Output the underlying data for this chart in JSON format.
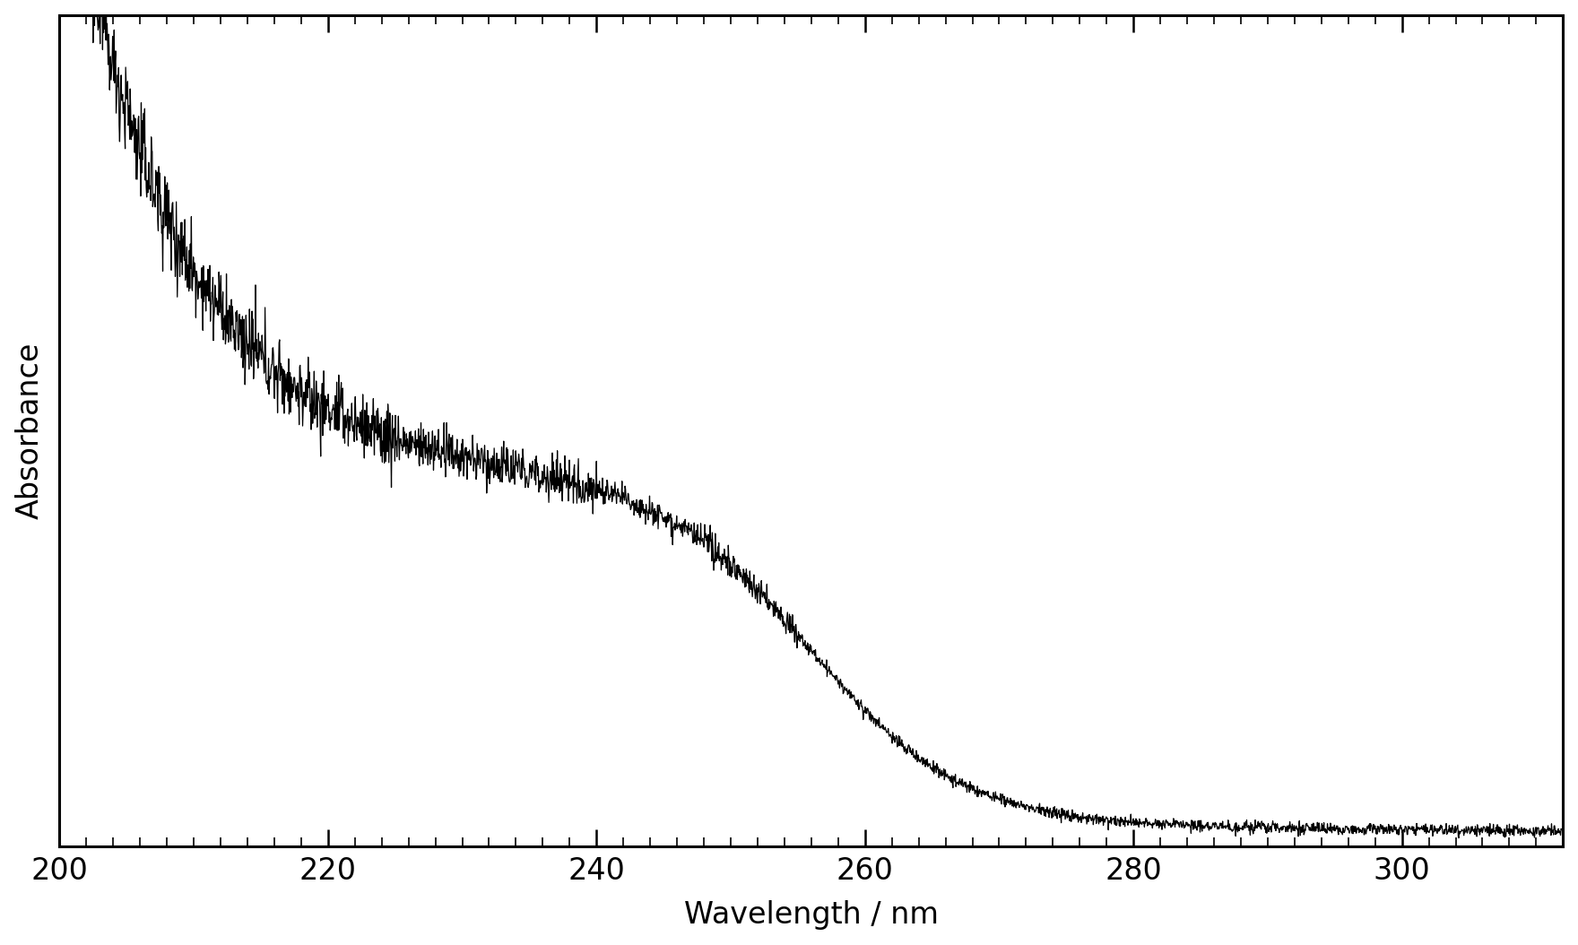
{
  "xlabel": "Wavelength / nm",
  "ylabel": "Absorbance",
  "xmin": 200,
  "xmax": 312,
  "xticks_major": [
    200,
    220,
    240,
    260,
    280,
    300
  ],
  "xticks_minor_step": 2,
  "line_color": "#000000",
  "background_color": "#ffffff",
  "xlabel_fontsize": 24,
  "ylabel_fontsize": 24,
  "tick_labelsize": 24,
  "spine_linewidth": 2.2
}
